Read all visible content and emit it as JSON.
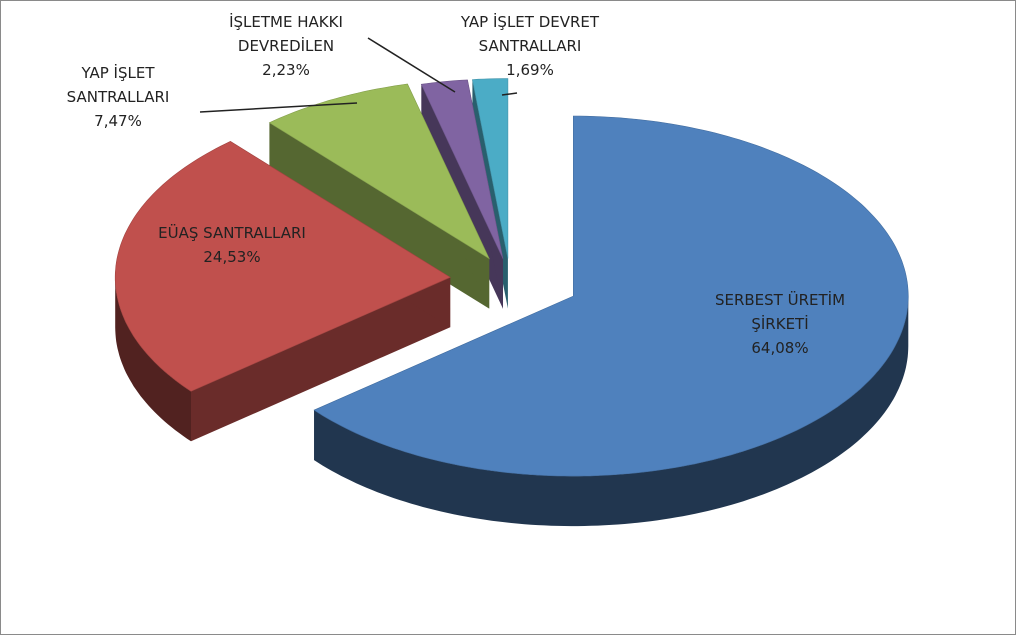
{
  "chart_data": {
    "type": "pie3d",
    "categories": [
      "SERBEST ÜRETİM ŞİRKETİ",
      "EÜAŞ SANTRALLARI",
      "YAP İŞLET SANTRALLARI",
      "İŞLETME HAKKI DEVREDİLEN",
      "YAP İŞLET DEVRET SANTRALLARI"
    ],
    "values": [
      64.08,
      24.53,
      7.47,
      2.23,
      1.69
    ],
    "value_labels": [
      "64,08%",
      "24,53%",
      "7,47%",
      "2,23%",
      "1,69%"
    ],
    "colors": [
      "#4f81bd",
      "#c0504d",
      "#9bbb59",
      "#8064a2",
      "#4bacc6"
    ]
  }
}
